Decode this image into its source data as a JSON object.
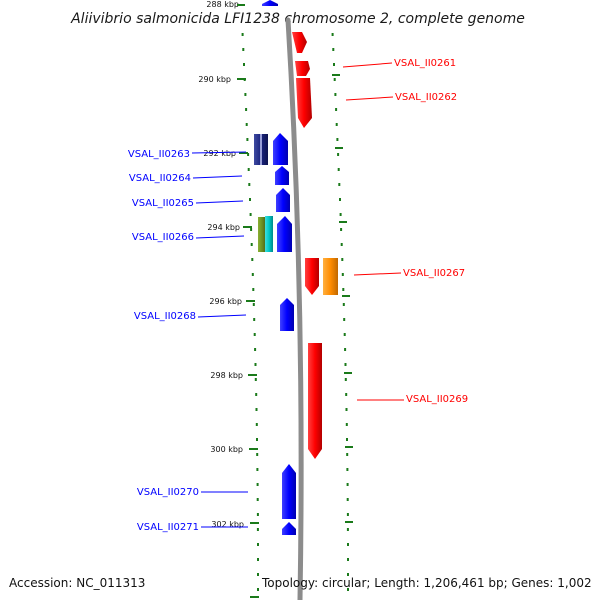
{
  "title": "Aliivibrio salmonicida LFI1238 chromosome 2, complete genome",
  "footer": {
    "accession": "Accession: NC_011313",
    "summary": "Topology: circular; Length: 1,206,461 bp; Genes: 1,002"
  },
  "colors": {
    "forward": "#ff0000",
    "reverse": "#0000ff",
    "backbone": "#8c8c8c",
    "ticks": "#1a7a1a",
    "orange": "#ff8c00",
    "olive": "#6b8e23",
    "cyan": "#00c8c8",
    "navy": "#1a237e"
  },
  "scale_labels": [
    "288 kbp",
    "290 kbp",
    "292 kbp",
    "294 kbp",
    "296 kbp",
    "298 kbp",
    "300 kbp",
    "302 kbp"
  ],
  "genes": [
    {
      "id": "VSAL_II0261",
      "strand": "forward",
      "labeled": true
    },
    {
      "id": "VSAL_II0262",
      "strand": "forward",
      "labeled": true
    },
    {
      "id": "VSAL_II0263",
      "strand": "reverse",
      "labeled": true
    },
    {
      "id": "VSAL_II0264",
      "strand": "reverse",
      "labeled": true
    },
    {
      "id": "VSAL_II0265",
      "strand": "reverse",
      "labeled": true
    },
    {
      "id": "VSAL_II0266",
      "strand": "reverse",
      "labeled": true
    },
    {
      "id": "VSAL_II0267",
      "strand": "forward",
      "labeled": true
    },
    {
      "id": "VSAL_II0268",
      "strand": "reverse",
      "labeled": true
    },
    {
      "id": "VSAL_II0269",
      "strand": "forward",
      "labeled": true
    },
    {
      "id": "VSAL_II0270",
      "strand": "reverse",
      "labeled": true
    },
    {
      "id": "VSAL_II0271",
      "strand": "reverse",
      "labeled": true
    }
  ]
}
